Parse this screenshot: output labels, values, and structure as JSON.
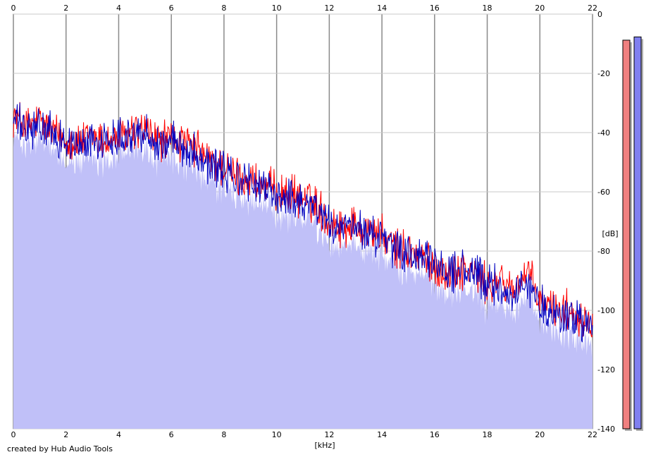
{
  "chart_data": {
    "type": "area",
    "xlabel": "[kHz]",
    "ylabel": "[dB]",
    "xlim": [
      0,
      22
    ],
    "ylim": [
      -140,
      0
    ],
    "xticks": [
      "0",
      "2",
      "4",
      "6",
      "8",
      "10",
      "12",
      "14",
      "16",
      "18",
      "20",
      "22"
    ],
    "yticks": [
      "0",
      "-20",
      "-40",
      "-60",
      "-80",
      "-100",
      "-120",
      "-140"
    ],
    "grid": true,
    "series": [
      {
        "color": "#ff0000",
        "x": [
          0,
          0.5,
          1,
          1.5,
          2,
          2.5,
          3,
          3.5,
          4,
          4.5,
          5,
          5.5,
          6,
          6.5,
          7,
          7.5,
          8,
          8.5,
          9,
          9.5,
          10,
          10.5,
          11,
          11.5,
          12,
          12.5,
          13,
          13.5,
          14,
          14.5,
          15,
          15.5,
          16,
          16.5,
          17,
          17.5,
          18,
          18.5,
          19,
          19.5,
          20,
          20.5,
          21,
          21.5,
          22
        ],
        "y": [
          -34,
          -38,
          -36,
          -40,
          -42,
          -44,
          -41,
          -43,
          -42,
          -40,
          -39,
          -43,
          -42,
          -44,
          -46,
          -50,
          -52,
          -55,
          -56,
          -58,
          -60,
          -61,
          -62,
          -64,
          -70,
          -72,
          -71,
          -73,
          -75,
          -79,
          -80,
          -82,
          -85,
          -88,
          -86,
          -87,
          -92,
          -90,
          -93,
          -87,
          -97,
          -99,
          -100,
          -102,
          -104
        ]
      },
      {
        "color": "#0000c0",
        "x": [
          0,
          0.5,
          1,
          1.5,
          2,
          2.5,
          3,
          3.5,
          4,
          4.5,
          5,
          5.5,
          6,
          6.5,
          7,
          7.5,
          8,
          8.5,
          9,
          9.5,
          10,
          10.5,
          11,
          11.5,
          12,
          12.5,
          13,
          13.5,
          14,
          14.5,
          15,
          15.5,
          16,
          16.5,
          17,
          17.5,
          18,
          18.5,
          19,
          19.5,
          20,
          20.5,
          21,
          21.5,
          22
        ],
        "y": [
          -35,
          -40,
          -38,
          -41,
          -43,
          -45,
          -42,
          -44,
          -40,
          -41,
          -40,
          -44,
          -43,
          -45,
          -47,
          -51,
          -53,
          -56,
          -57,
          -59,
          -61,
          -62,
          -63,
          -65,
          -71,
          -73,
          -72,
          -74,
          -76,
          -80,
          -81,
          -83,
          -84,
          -87,
          -86,
          -88,
          -91,
          -92,
          -95,
          -91,
          -98,
          -102,
          -101,
          -104,
          -106
        ]
      }
    ],
    "legend": "none",
    "level_meters": [
      {
        "color": "#f08080",
        "level_db": -8.8
      },
      {
        "color": "#8080f0",
        "level_db": -7.7
      }
    ]
  },
  "credit": "created by Hub Audio Tools"
}
